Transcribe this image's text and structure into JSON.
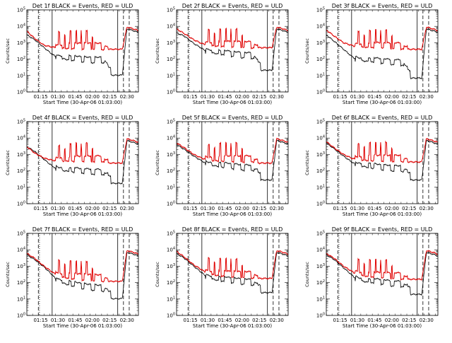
{
  "figure": {
    "colors": {
      "events": "#000000",
      "uld": "#e00000",
      "axes": "#000000"
    }
  },
  "chart_data": [
    {
      "type": "line",
      "title": "Det 1f BLACK = Events, RED = ULD",
      "xlabel": "Start Time (30-Apr-06 01:03:00)",
      "ylabel": "Counts/sec",
      "yscale": "log",
      "ylim": [
        1,
        100000
      ],
      "ytick_labels": [
        "10^0",
        "10^1",
        "10^2",
        "10^3",
        "10^4",
        "10^5"
      ],
      "xticks": [
        "01:15",
        "01:30",
        "01:45",
        "02:00",
        "02:15",
        "02:30"
      ],
      "xlim": [
        "01:03",
        "02:40"
      ],
      "markers": [
        {
          "time": "01:13",
          "style": "dashed"
        },
        {
          "time": "01:14",
          "style": "dotted"
        },
        {
          "time": "01:25",
          "style": "solid"
        },
        {
          "time": "02:22",
          "style": "solid"
        },
        {
          "time": "02:27",
          "style": "dashed"
        },
        {
          "time": "02:32",
          "style": "dashed"
        }
      ],
      "events_base": [
        3000,
        1500,
        500,
        200,
        120,
        90,
        70,
        60,
        60,
        30
      ],
      "uld_base": [
        5000,
        1800,
        700,
        550,
        480,
        450,
        420,
        400,
        380,
        400
      ]
    },
    {
      "type": "line",
      "title": "Det 2f BLACK = Events, RED = ULD",
      "xlabel": "Start Time (30-Apr-06 01:03:00)",
      "ylabel": "Counts/sec",
      "yscale": "log",
      "ylim": [
        1,
        100000
      ],
      "ytick_labels": [
        "10^0",
        "10^1",
        "10^2",
        "10^3",
        "10^4",
        "10^5"
      ],
      "xticks": [
        "01:15",
        "01:30",
        "01:45",
        "02:00",
        "02:15",
        "02:30"
      ],
      "xlim": [
        "01:03",
        "02:40"
      ],
      "markers": [
        {
          "time": "01:13",
          "style": "dashed"
        },
        {
          "time": "01:14",
          "style": "dotted"
        },
        {
          "time": "01:25",
          "style": "solid"
        },
        {
          "time": "02:22",
          "style": "solid"
        },
        {
          "time": "02:27",
          "style": "dashed"
        },
        {
          "time": "02:32",
          "style": "dashed"
        }
      ],
      "events_base": [
        4000,
        2500,
        900,
        450,
        280,
        200,
        150,
        120,
        110,
        60
      ],
      "uld_base": [
        7000,
        3500,
        1500,
        900,
        700,
        600,
        550,
        500,
        480,
        500
      ]
    },
    {
      "type": "line",
      "title": "Det 3f BLACK = Events, RED = ULD",
      "xlabel": "Start Time (30-Apr-06 01:03:00)",
      "ylabel": "Counts/sec",
      "yscale": "log",
      "ylim": [
        1,
        100000
      ],
      "ytick_labels": [
        "10^0",
        "10^1",
        "10^2",
        "10^3",
        "10^4",
        "10^5"
      ],
      "xticks": [
        "01:15",
        "01:30",
        "01:45",
        "02:00",
        "02:15",
        "02:30"
      ],
      "xlim": [
        "01:03",
        "02:40"
      ],
      "markers": [
        {
          "time": "01:13",
          "style": "dashed"
        },
        {
          "time": "01:14",
          "style": "dotted"
        },
        {
          "time": "01:25",
          "style": "solid"
        },
        {
          "time": "02:22",
          "style": "solid"
        },
        {
          "time": "02:27",
          "style": "dashed"
        },
        {
          "time": "02:32",
          "style": "dashed"
        }
      ],
      "events_base": [
        3000,
        1200,
        400,
        150,
        90,
        70,
        55,
        45,
        40,
        20
      ],
      "uld_base": [
        6000,
        2500,
        1000,
        700,
        550,
        500,
        460,
        420,
        400,
        400
      ]
    },
    {
      "type": "line",
      "title": "Det 4f BLACK = Events, RED = ULD",
      "xlabel": "Start Time (30-Apr-06 01:03:00)",
      "ylabel": "Counts/sec",
      "yscale": "log",
      "ylim": [
        1,
        100000
      ],
      "ytick_labels": [
        "10^0",
        "10^1",
        "10^2",
        "10^3",
        "10^4",
        "10^5"
      ],
      "xticks": [
        "01:15",
        "01:30",
        "01:45",
        "02:00",
        "02:15",
        "02:30"
      ],
      "xlim": [
        "01:03",
        "02:40"
      ],
      "markers": [
        {
          "time": "01:13",
          "style": "dashed"
        },
        {
          "time": "01:14",
          "style": "dotted"
        },
        {
          "time": "01:25",
          "style": "solid"
        },
        {
          "time": "02:22",
          "style": "solid"
        },
        {
          "time": "02:27",
          "style": "dashed"
        },
        {
          "time": "02:32",
          "style": "dashed"
        }
      ],
      "events_base": [
        3000,
        1500,
        500,
        200,
        120,
        90,
        70,
        60,
        55,
        50
      ],
      "uld_base": [
        3000,
        1200,
        600,
        450,
        400,
        380,
        360,
        350,
        340,
        300
      ]
    },
    {
      "type": "line",
      "title": "Det 5f BLACK = Events, RED = ULD",
      "xlabel": "Start Time (30-Apr-06 01:03:00)",
      "ylabel": "Counts/sec",
      "yscale": "log",
      "ylim": [
        1,
        100000
      ],
      "ytick_labels": [
        "10^0",
        "10^1",
        "10^2",
        "10^3",
        "10^4",
        "10^5"
      ],
      "xticks": [
        "01:15",
        "01:30",
        "01:45",
        "02:00",
        "02:15",
        "02:30"
      ],
      "xlim": [
        "01:03",
        "02:40"
      ],
      "markers": [
        {
          "time": "01:13",
          "style": "dashed"
        },
        {
          "time": "01:14",
          "style": "dotted"
        },
        {
          "time": "01:25",
          "style": "solid"
        },
        {
          "time": "02:22",
          "style": "solid"
        },
        {
          "time": "02:27",
          "style": "dashed"
        },
        {
          "time": "02:32",
          "style": "dashed"
        }
      ],
      "events_base": [
        4000,
        2000,
        800,
        400,
        250,
        180,
        140,
        110,
        100,
        80
      ],
      "uld_base": [
        5000,
        2500,
        1000,
        600,
        450,
        400,
        370,
        350,
        340,
        300
      ]
    },
    {
      "type": "line",
      "title": "Det 6f BLACK = Events, RED = ULD",
      "xlabel": "Start Time (30-Apr-06 01:03:00)",
      "ylabel": "Counts/sec",
      "yscale": "log",
      "ylim": [
        1,
        100000
      ],
      "ytick_labels": [
        "10^0",
        "10^1",
        "10^2",
        "10^3",
        "10^4",
        "10^5"
      ],
      "xticks": [
        "01:15",
        "01:30",
        "01:45",
        "02:00",
        "02:15",
        "02:30"
      ],
      "xlim": [
        "01:03",
        "02:40"
      ],
      "markers": [
        {
          "time": "01:13",
          "style": "dashed"
        },
        {
          "time": "01:14",
          "style": "dotted"
        },
        {
          "time": "01:25",
          "style": "solid"
        },
        {
          "time": "02:22",
          "style": "solid"
        },
        {
          "time": "02:27",
          "style": "dashed"
        },
        {
          "time": "02:32",
          "style": "dashed"
        }
      ],
      "events_base": [
        5000,
        2200,
        800,
        350,
        220,
        160,
        120,
        100,
        90,
        80
      ],
      "uld_base": [
        6000,
        2500,
        1000,
        600,
        480,
        430,
        400,
        380,
        360,
        350
      ]
    },
    {
      "type": "line",
      "title": "Det 7f BLACK = Events, RED = ULD",
      "xlabel": "Start Time (30-Apr-06 01:03:00)",
      "ylabel": "Counts/sec",
      "yscale": "log",
      "ylim": [
        1,
        100000
      ],
      "ytick_labels": [
        "10^0",
        "10^1",
        "10^2",
        "10^3",
        "10^4",
        "10^5"
      ],
      "xticks": [
        "01:15",
        "01:30",
        "01:45",
        "02:00",
        "02:15",
        "02:30"
      ],
      "xlim": [
        "01:03",
        "02:40"
      ],
      "markers": [
        {
          "time": "01:13",
          "style": "dashed"
        },
        {
          "time": "01:14",
          "style": "dotted"
        },
        {
          "time": "01:25",
          "style": "solid"
        },
        {
          "time": "02:22",
          "style": "solid"
        },
        {
          "time": "02:27",
          "style": "dashed"
        },
        {
          "time": "02:32",
          "style": "dashed"
        }
      ],
      "events_base": [
        5000,
        2500,
        900,
        300,
        120,
        70,
        45,
        35,
        30,
        30
      ],
      "uld_base": [
        6000,
        3000,
        1000,
        450,
        250,
        180,
        150,
        130,
        120,
        120
      ]
    },
    {
      "type": "line",
      "title": "Det 8f BLACK = Events, RED = ULD",
      "xlabel": "Start Time (30-Apr-06 01:03:00)",
      "ylabel": "Counts/sec",
      "yscale": "log",
      "ylim": [
        1,
        100000
      ],
      "ytick_labels": [
        "10^0",
        "10^1",
        "10^2",
        "10^3",
        "10^4",
        "10^5"
      ],
      "xticks": [
        "01:15",
        "01:30",
        "01:45",
        "02:00",
        "02:15",
        "02:30"
      ],
      "xlim": [
        "01:03",
        "02:40"
      ],
      "markers": [
        {
          "time": "01:13",
          "style": "dashed"
        },
        {
          "time": "01:14",
          "style": "dotted"
        },
        {
          "time": "01:25",
          "style": "solid"
        },
        {
          "time": "02:22",
          "style": "solid"
        },
        {
          "time": "02:27",
          "style": "dashed"
        },
        {
          "time": "02:32",
          "style": "dashed"
        }
      ],
      "events_base": [
        6000,
        3000,
        1000,
        400,
        200,
        130,
        100,
        80,
        70,
        70
      ],
      "uld_base": [
        8000,
        3500,
        1200,
        600,
        350,
        260,
        220,
        200,
        190,
        180
      ]
    },
    {
      "type": "line",
      "title": "Det 9f BLACK = Events, RED = ULD",
      "xlabel": "Start Time (30-Apr-06 01:03:00)",
      "ylabel": "Counts/sec",
      "yscale": "log",
      "ylim": [
        1,
        100000
      ],
      "ytick_labels": [
        "10^0",
        "10^1",
        "10^2",
        "10^3",
        "10^4",
        "10^5"
      ],
      "xticks": [
        "01:15",
        "01:30",
        "01:45",
        "02:00",
        "02:15",
        "02:30"
      ],
      "xlim": [
        "01:03",
        "02:40"
      ],
      "markers": [
        {
          "time": "01:13",
          "style": "dashed"
        },
        {
          "time": "01:14",
          "style": "dotted"
        },
        {
          "time": "01:25",
          "style": "solid"
        },
        {
          "time": "02:22",
          "style": "solid"
        },
        {
          "time": "02:27",
          "style": "dashed"
        },
        {
          "time": "02:32",
          "style": "dashed"
        }
      ],
      "events_base": [
        5000,
        2500,
        800,
        300,
        150,
        100,
        80,
        60,
        55,
        55
      ],
      "uld_base": [
        6000,
        3000,
        1000,
        500,
        300,
        220,
        190,
        170,
        160,
        160
      ]
    }
  ]
}
